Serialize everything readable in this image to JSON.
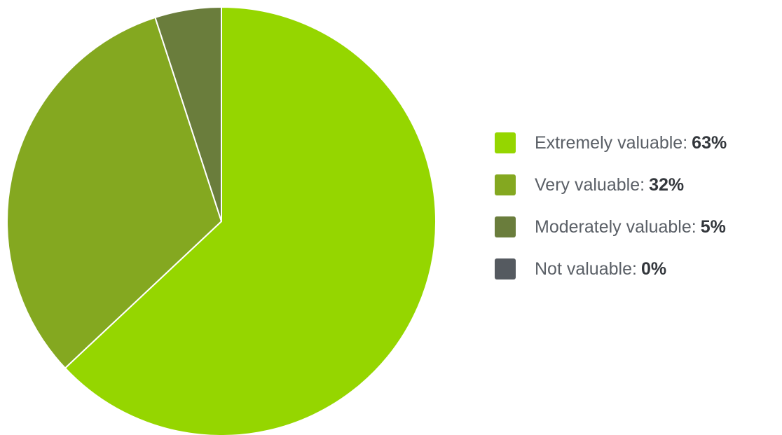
{
  "chart_data": {
    "type": "pie",
    "start_angle_deg": 0,
    "direction": "clockwise",
    "legend_position": "right",
    "slices": [
      {
        "label": "Extremely valuable",
        "value": 63,
        "value_label": "63%",
        "color": "#95d600"
      },
      {
        "label": "Very valuable",
        "value": 32,
        "value_label": "32%",
        "color": "#84a820"
      },
      {
        "label": "Moderately valuable",
        "value": 5,
        "value_label": "5%",
        "color": "#6a7d3c"
      },
      {
        "label": "Not valuable",
        "value": 0,
        "value_label": "0%",
        "color": "#555a60"
      }
    ],
    "slice_border_color": "#ffffff"
  }
}
